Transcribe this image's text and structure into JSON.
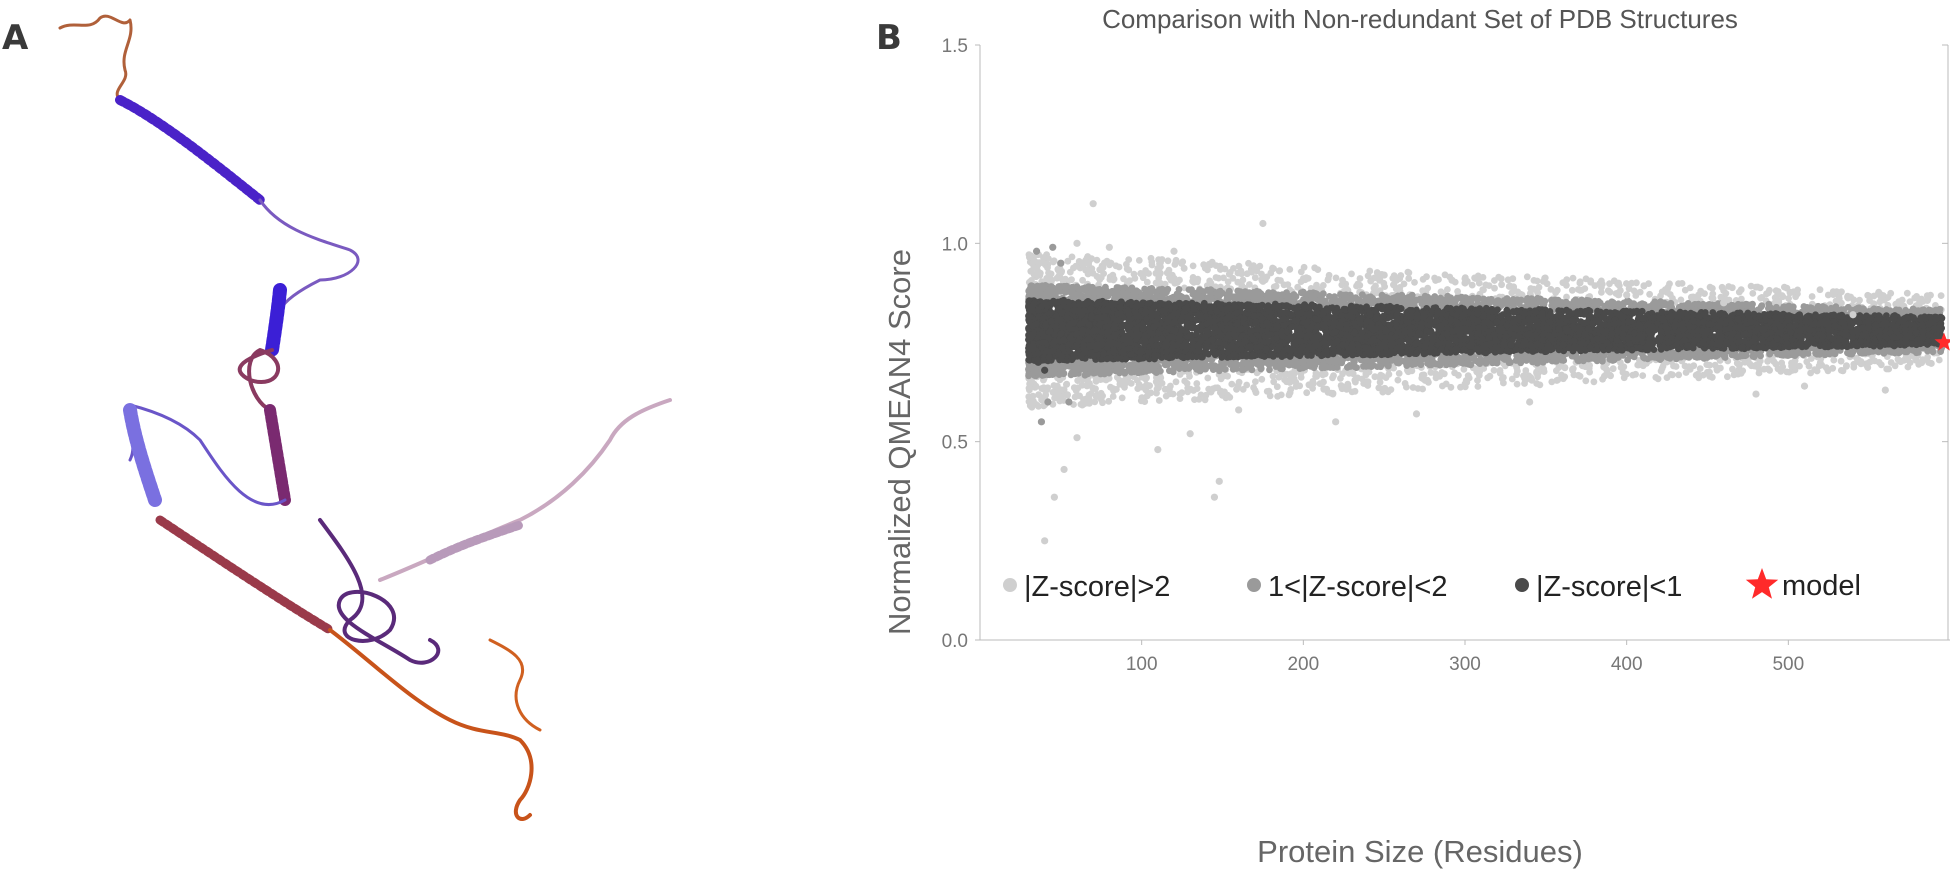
{
  "panels": {
    "a_label": "A",
    "b_label": "B"
  },
  "structure_image": {
    "colors": {
      "helix_blue": "#3b1fd6",
      "helix_purple": "#5a2a8a",
      "helix_maroon": "#8a3040",
      "coil_orange": "#c8531a",
      "coil_pale": "#c9a8c0"
    }
  },
  "chart_data": {
    "type": "scatter",
    "title": "Comparison with Non-redundant Set of PDB Structures",
    "xlabel": "Protein Size (Residues)",
    "ylabel": "Normalized QMEAN4 Score",
    "xlim": [
      0,
      600
    ],
    "ylim": [
      0.0,
      1.5
    ],
    "x_ticks": [
      "100",
      "200",
      "300",
      "400",
      "500"
    ],
    "y_ticks": [
      "0.0",
      "0.5",
      "1.0",
      "1.5"
    ],
    "grid": false,
    "legend_position": "bottom",
    "series": [
      {
        "name": "|Z-score|>2",
        "color": "#cfcfcf",
        "band": "outer",
        "values": [
          [
            40,
            0.25
          ],
          [
            46,
            0.36
          ],
          [
            52,
            0.43
          ],
          [
            110,
            0.48
          ],
          [
            145,
            0.36
          ],
          [
            148,
            0.4
          ],
          [
            60,
            0.51
          ],
          [
            70,
            1.1
          ],
          [
            175,
            1.05
          ],
          [
            130,
            0.52
          ],
          [
            160,
            0.58
          ],
          [
            220,
            0.55
          ],
          [
            270,
            0.57
          ],
          [
            340,
            0.6
          ],
          [
            480,
            0.62
          ],
          [
            510,
            0.64
          ],
          [
            560,
            0.63
          ],
          [
            60,
            1.0
          ],
          [
            80,
            0.99
          ],
          [
            120,
            0.98
          ],
          [
            250,
            0.92
          ],
          [
            300,
            0.9
          ],
          [
            330,
            0.89
          ],
          [
            400,
            0.87
          ],
          [
            460,
            0.85
          ],
          [
            540,
            0.82
          ]
        ]
      },
      {
        "name": "1<|Z-score|<2",
        "color": "#9a9a9a",
        "band": "middle",
        "values": [
          [
            35,
            0.98
          ],
          [
            45,
            0.99
          ],
          [
            50,
            0.95
          ],
          [
            38,
            0.55
          ],
          [
            42,
            0.6
          ],
          [
            55,
            0.6
          ]
        ]
      },
      {
        "name": "|Z-score|<1",
        "color": "#4a4a4a",
        "band": "inner",
        "values": [
          [
            36,
            0.7
          ],
          [
            40,
            0.68
          ],
          [
            590,
            0.76
          ]
        ]
      },
      {
        "name": "model",
        "color": "#ff2a2a",
        "marker": "star",
        "values": [
          [
            597,
            0.75
          ]
        ]
      }
    ]
  }
}
